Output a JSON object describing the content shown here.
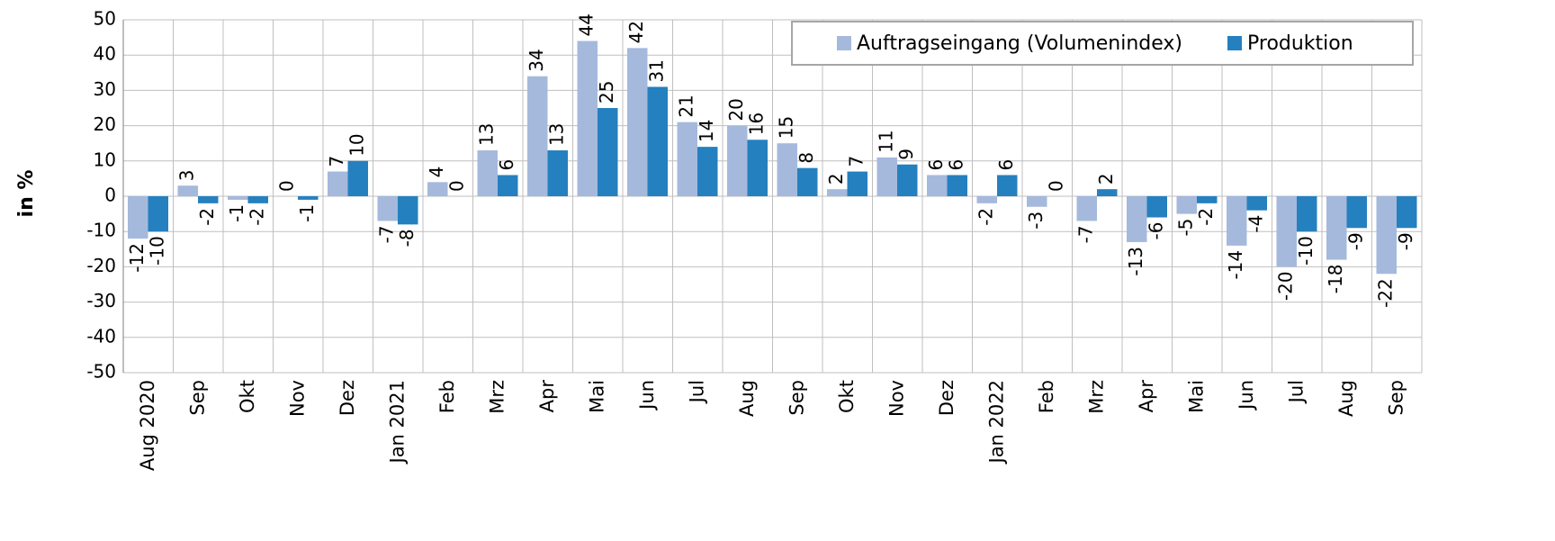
{
  "chart_data": {
    "type": "bar",
    "y_label": "in %",
    "categories": [
      "Aug 2020",
      "Sep",
      "Okt",
      "Nov",
      "Dez",
      "Jan 2021",
      "Feb",
      "Mrz",
      "Apr",
      "Mai",
      "Jun",
      "Jul",
      "Aug",
      "Sep",
      "Okt",
      "Nov",
      "Dez",
      "Jan 2022",
      "Feb",
      "Mrz",
      "Apr",
      "Mai",
      "Jun",
      "Jul",
      "Aug",
      "Sep"
    ],
    "series": [
      {
        "name": "Auftragseingang (Volumenindex)",
        "color": "#a5b9dc",
        "values": [
          -12,
          3,
          -1,
          0,
          7,
          -7,
          4,
          13,
          34,
          44,
          42,
          21,
          20,
          15,
          2,
          11,
          6,
          -2,
          -3,
          -7,
          -13,
          -5,
          -14,
          -20,
          -18,
          -22
        ]
      },
      {
        "name": "Produktion",
        "color": "#2580bf",
        "values": [
          -10,
          -2,
          -2,
          -1,
          10,
          -8,
          0,
          6,
          13,
          25,
          31,
          14,
          16,
          8,
          7,
          9,
          6,
          6,
          0,
          2,
          -6,
          -2,
          -4,
          -10,
          -9,
          -9
        ]
      }
    ],
    "ylim": [
      -50,
      50
    ],
    "yticks": [
      -50,
      -40,
      -30,
      -20,
      -10,
      0,
      10,
      20,
      30,
      40,
      50
    ],
    "grid": true,
    "legend": "upper right"
  }
}
